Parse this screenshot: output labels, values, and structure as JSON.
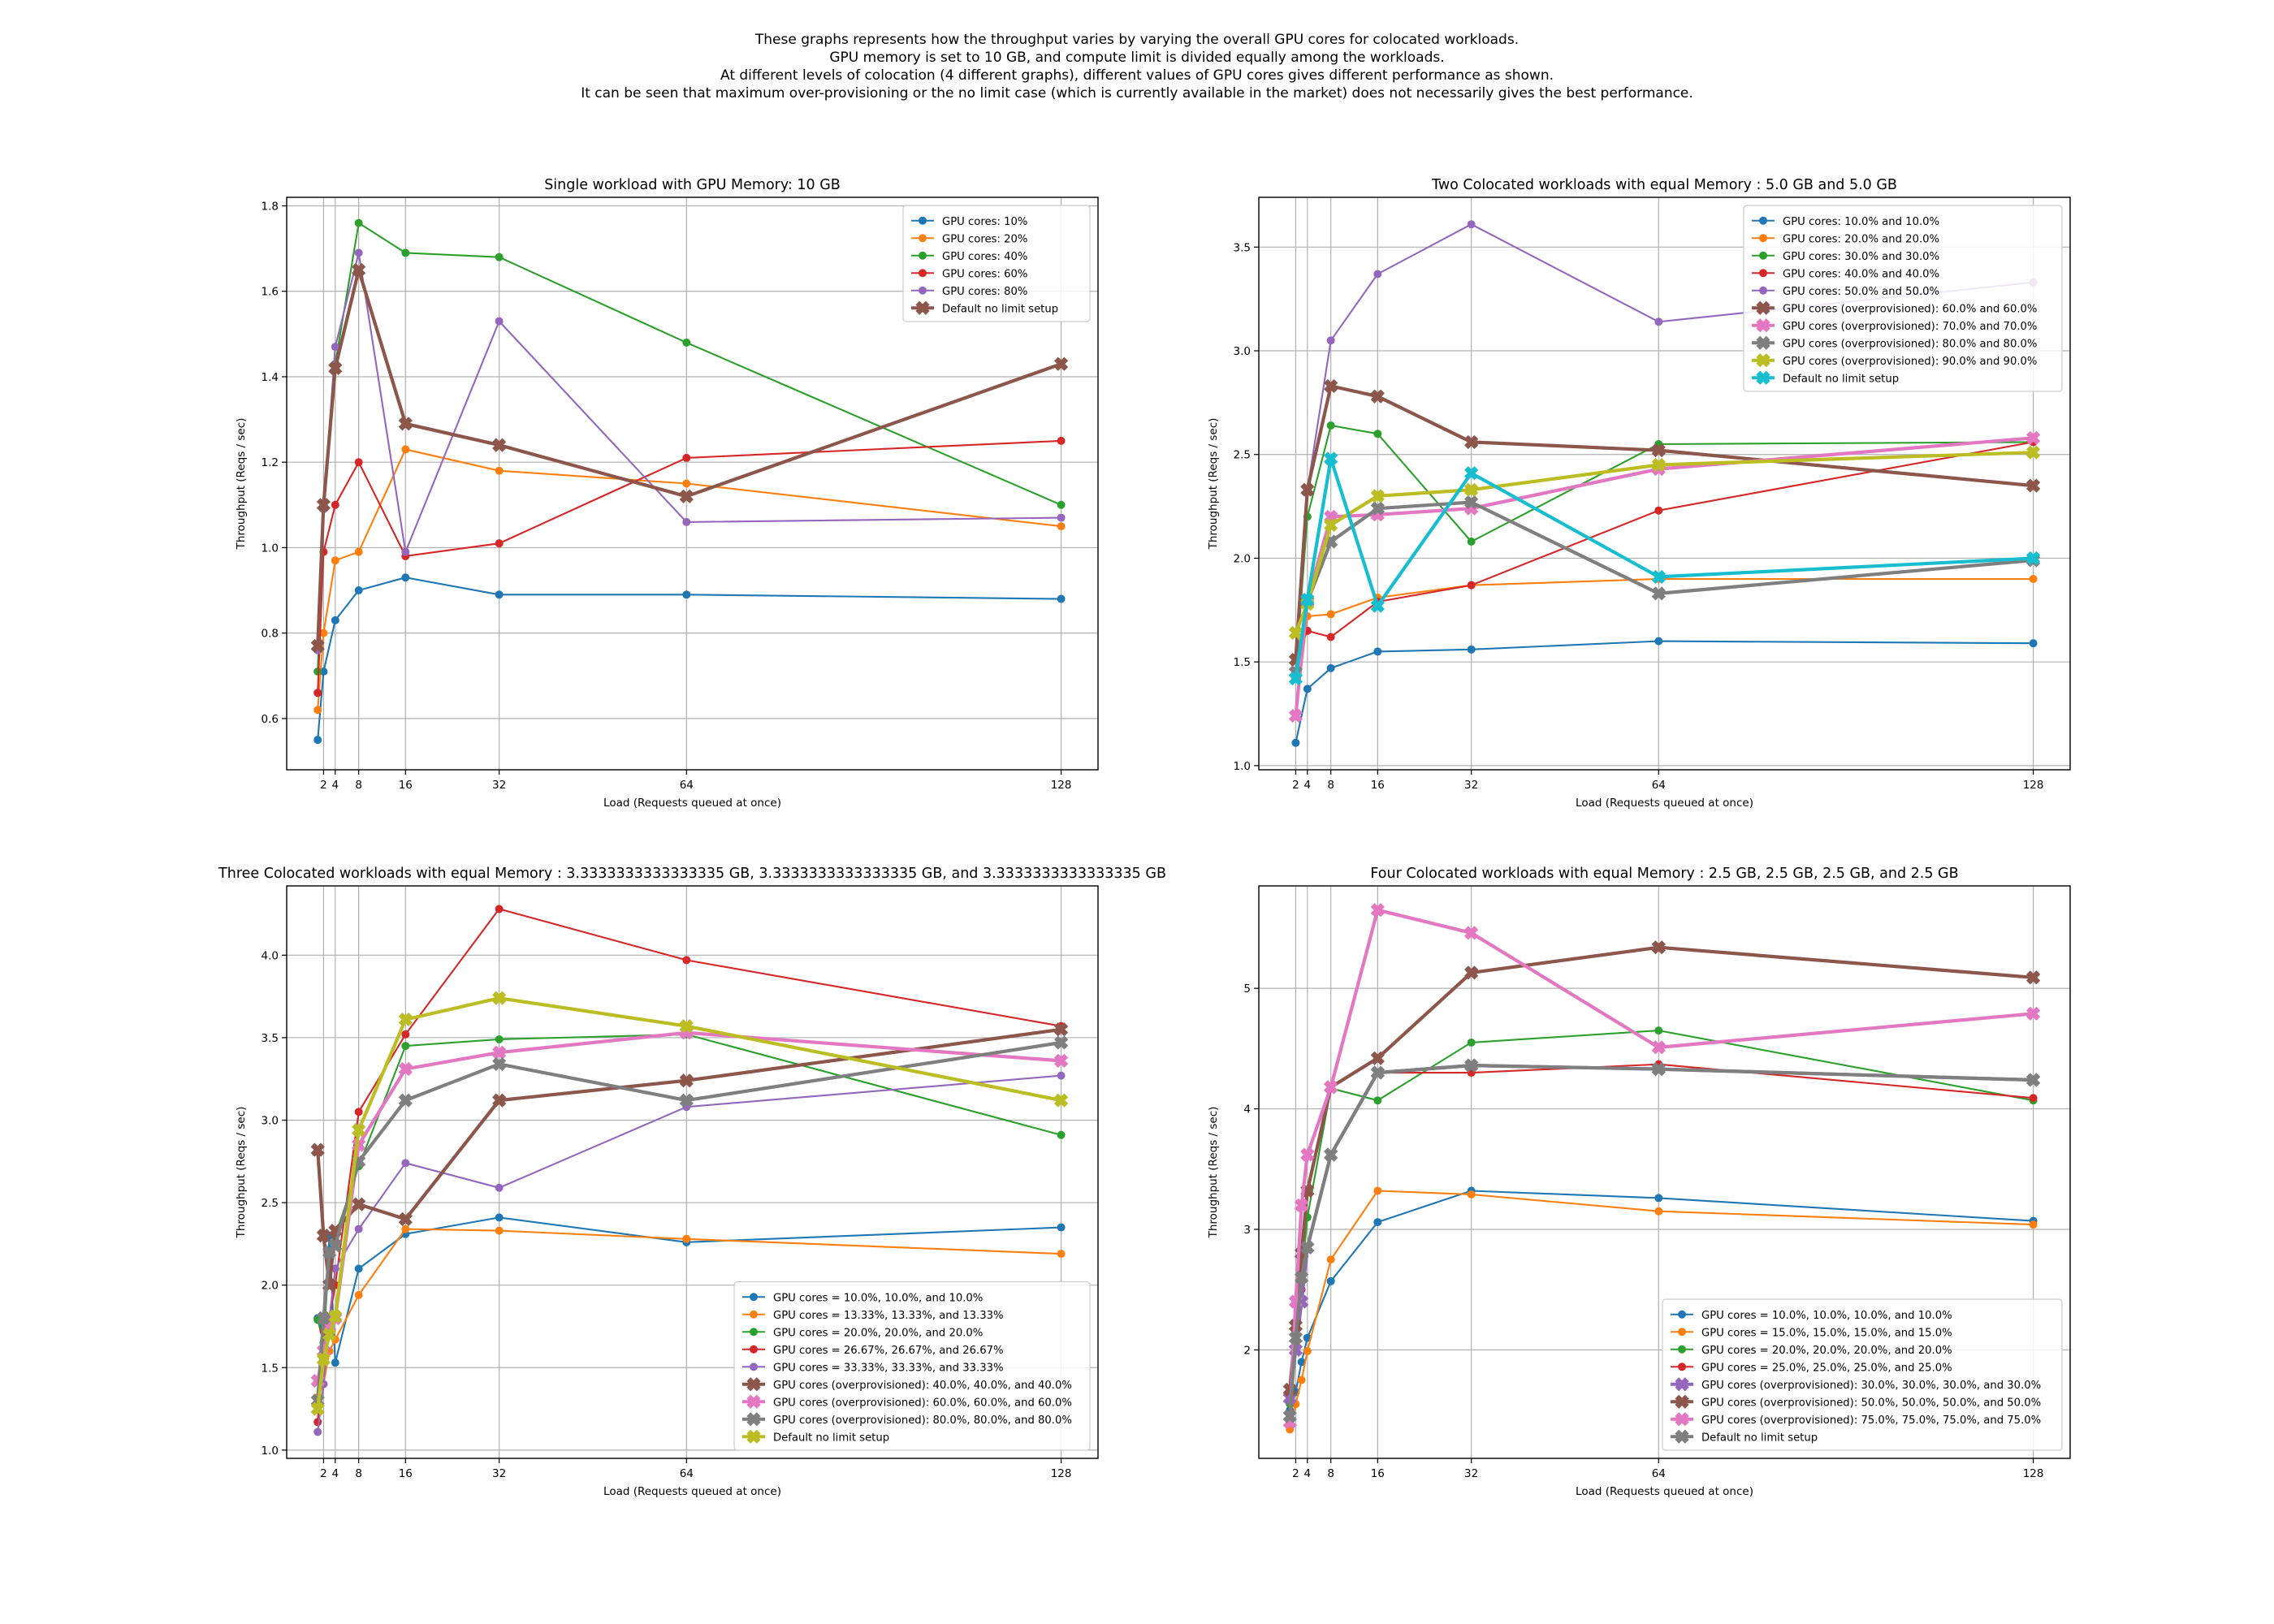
{
  "suptitle": [
    "These graphs represents how the throughput varies by varying the overall GPU cores for colocated workloads.",
    "GPU memory is set to 10 GB, and compute limit is divided equally among the workloads.",
    "At different levels of colocation (4 different graphs), different values of GPU cores gives different performance as shown.",
    "It can be seen that maximum over-provisioning or the no limit case (which is currently available in the market) does not necessarily gives the best performance."
  ],
  "colors": {
    "blue": "#1f77b4",
    "orange": "#ff7f0e",
    "green": "#2ca02c",
    "red": "#d62728",
    "purple": "#9467bd",
    "brown": "#8c564b",
    "pink": "#e377c2",
    "gray": "#7f7f7f",
    "olive": "#bcbd22",
    "cyan": "#17becf"
  },
  "chart_data": [
    {
      "type": "line",
      "title": "Single workload with GPU Memory: 10 GB",
      "xlabel": "Load (Requests queued at once)",
      "ylabel": "Throughput (Reqs / sec)",
      "xlim": [
        -4.3,
        134.3
      ],
      "ylim": [
        0.48,
        1.82
      ],
      "xticks": [
        2,
        4,
        8,
        16,
        32,
        64,
        128
      ],
      "yticks": [
        0.6,
        0.8,
        1.0,
        1.2,
        1.4,
        1.6,
        1.8
      ],
      "ytick_labels": [
        "0.6",
        "0.8",
        "1.0",
        "1.2",
        "1.4",
        "1.6",
        "1.8"
      ],
      "legend_position": "top-right",
      "x": [
        1,
        2,
        4,
        8,
        16,
        32,
        64,
        128
      ],
      "series": [
        {
          "name": "GPU cores: 10%",
          "color": "blue",
          "marker": "circle",
          "values": [
            0.55,
            0.71,
            0.83,
            0.9,
            0.93,
            0.89,
            0.89,
            0.88
          ]
        },
        {
          "name": "GPU cores: 20%",
          "color": "orange",
          "marker": "circle",
          "values": [
            0.62,
            0.8,
            0.97,
            0.99,
            1.23,
            1.18,
            1.15,
            1.05
          ]
        },
        {
          "name": "GPU cores: 40%",
          "color": "green",
          "marker": "circle",
          "values": [
            0.71,
            1.1,
            1.43,
            1.76,
            1.69,
            1.68,
            1.48,
            1.1
          ]
        },
        {
          "name": "GPU cores: 60%",
          "color": "red",
          "marker": "circle",
          "values": [
            0.66,
            0.99,
            1.1,
            1.2,
            0.98,
            1.01,
            1.21,
            1.25
          ]
        },
        {
          "name": "GPU cores: 80%",
          "color": "purple",
          "marker": "circle",
          "values": [
            0.76,
            1.09,
            1.47,
            1.69,
            0.99,
            1.53,
            1.06,
            1.07
          ]
        },
        {
          "name": "Default no limit setup",
          "color": "brown",
          "marker": "x",
          "values": [
            0.77,
            1.1,
            1.42,
            1.65,
            1.29,
            1.24,
            1.12,
            1.43
          ]
        }
      ]
    },
    {
      "type": "line",
      "title": "Two Colocated workloads with equal Memory : 5.0 GB and 5.0 GB",
      "xlabel": "Load (Requests queued at once)",
      "ylabel": "Throughput (Reqs / sec)",
      "xlim": [
        -4.3,
        134.3
      ],
      "ylim": [
        0.98,
        3.74
      ],
      "xticks": [
        2,
        4,
        8,
        16,
        32,
        64,
        128
      ],
      "yticks": [
        1.0,
        1.5,
        2.0,
        2.5,
        3.0,
        3.5
      ],
      "ytick_labels": [
        "1.0",
        "1.5",
        "2.0",
        "2.5",
        "3.0",
        "3.5"
      ],
      "legend_position": "top-right",
      "x": [
        2,
        4,
        8,
        16,
        32,
        64,
        128
      ],
      "series": [
        {
          "name": "GPU cores: 10.0% and 10.0%",
          "color": "blue",
          "marker": "circle",
          "values": [
            1.11,
            1.37,
            1.47,
            1.55,
            1.56,
            1.6,
            1.59
          ]
        },
        {
          "name": "GPU cores: 20.0% and 20.0%",
          "color": "orange",
          "marker": "circle",
          "values": [
            1.24,
            1.72,
            1.73,
            1.81,
            1.87,
            1.9,
            1.9
          ]
        },
        {
          "name": "GPU cores: 30.0% and 30.0%",
          "color": "green",
          "marker": "circle",
          "values": [
            1.45,
            2.2,
            2.64,
            2.6,
            2.08,
            2.55,
            2.56
          ]
        },
        {
          "name": "GPU cores: 40.0% and 40.0%",
          "color": "red",
          "marker": "circle",
          "values": [
            1.52,
            1.65,
            1.62,
            1.79,
            1.87,
            2.23,
            2.56
          ]
        },
        {
          "name": "GPU cores: 50.0% and 50.0%",
          "color": "purple",
          "marker": "circle",
          "values": [
            1.42,
            2.33,
            3.05,
            3.37,
            3.61,
            3.14,
            3.33
          ]
        },
        {
          "name": "GPU cores (overprovisioned): 60.0% and 60.0%",
          "color": "brown",
          "marker": "x",
          "values": [
            1.51,
            2.33,
            2.83,
            2.78,
            2.56,
            2.52,
            2.35
          ]
        },
        {
          "name": "GPU cores (overprovisioned): 70.0% and 70.0%",
          "color": "pink",
          "marker": "x",
          "values": [
            1.24,
            1.8,
            2.2,
            2.21,
            2.24,
            2.43,
            2.58
          ]
        },
        {
          "name": "GPU cores (overprovisioned): 80.0% and 80.0%",
          "color": "gray",
          "marker": "x",
          "values": [
            1.45,
            1.79,
            2.08,
            2.24,
            2.27,
            1.83,
            1.99
          ]
        },
        {
          "name": "GPU cores (overprovisioned): 90.0% and 90.0%",
          "color": "olive",
          "marker": "x",
          "values": [
            1.64,
            1.78,
            2.16,
            2.3,
            2.33,
            2.45,
            2.51
          ]
        },
        {
          "name": "Default no limit setup",
          "color": "cyan",
          "marker": "x",
          "values": [
            1.42,
            1.8,
            2.48,
            1.77,
            2.41,
            1.91,
            2.0
          ]
        }
      ]
    },
    {
      "type": "line",
      "title": "Three Colocated workloads with equal Memory : 3.3333333333333335 GB, 3.3333333333333335 GB, and 3.3333333333333335 GB",
      "xlabel": "Load (Requests queued at once)",
      "ylabel": "Throughput (Reqs / sec)",
      "xlim": [
        -4.3,
        134.3
      ],
      "ylim": [
        0.95,
        4.42
      ],
      "xticks": [
        2,
        4,
        8,
        16,
        32,
        64,
        128
      ],
      "yticks": [
        1.0,
        1.5,
        2.0,
        2.5,
        3.0,
        3.5,
        4.0
      ],
      "ytick_labels": [
        "1.0",
        "1.5",
        "2.0",
        "2.5",
        "3.0",
        "3.5",
        "4.0"
      ],
      "legend_position": "bottom-right",
      "x": [
        1,
        2,
        3,
        4,
        8,
        16,
        32,
        64,
        128
      ],
      "series": [
        {
          "name": "GPU cores = 10.0%, 10.0%, and 10.0%",
          "color": "blue",
          "marker": "circle",
          "values": [
            1.8,
            1.75,
            2.3,
            1.53,
            2.1,
            2.31,
            2.41,
            2.26,
            2.35
          ]
        },
        {
          "name": "GPU cores = 13.33%, 13.33%, and 13.33%",
          "color": "orange",
          "marker": "circle",
          "values": [
            1.32,
            1.4,
            1.6,
            1.67,
            1.94,
            2.34,
            2.33,
            2.28,
            2.19
          ]
        },
        {
          "name": "GPU cores = 20.0%, 20.0%, and 20.0%",
          "color": "green",
          "marker": "circle",
          "values": [
            1.79,
            1.65,
            2.2,
            2.3,
            2.72,
            3.45,
            3.49,
            3.52,
            2.91
          ]
        },
        {
          "name": "GPU cores = 26.67%, 26.67%, and 26.67%",
          "color": "red",
          "marker": "circle",
          "values": [
            1.17,
            1.72,
            1.8,
            2.0,
            3.05,
            3.52,
            4.28,
            3.97,
            3.57
          ]
        },
        {
          "name": "GPU cores = 33.33%, 33.33%, and 33.33%",
          "color": "purple",
          "marker": "circle",
          "values": [
            1.11,
            1.4,
            1.8,
            2.1,
            2.34,
            2.74,
            2.59,
            3.08,
            3.27
          ]
        },
        {
          "name": "GPU cores (overprovisioned): 40.0%, 40.0%, and 40.0%",
          "color": "brown",
          "marker": "x",
          "values": [
            2.82,
            2.3,
            2.0,
            2.33,
            2.49,
            2.4,
            3.12,
            3.24,
            3.55
          ]
        },
        {
          "name": "GPU cores (overprovisioned): 60.0%, 60.0%, and 60.0%",
          "color": "pink",
          "marker": "x",
          "values": [
            1.42,
            1.6,
            1.75,
            1.8,
            2.85,
            3.31,
            3.41,
            3.53,
            3.36
          ]
        },
        {
          "name": "GPU cores (overprovisioned): 80.0%, 80.0%, and 80.0%",
          "color": "gray",
          "marker": "x",
          "values": [
            1.3,
            1.8,
            2.2,
            2.24,
            2.75,
            3.12,
            3.34,
            3.12,
            3.47
          ]
        },
        {
          "name": "Default no limit setup",
          "color": "olive",
          "marker": "x",
          "values": [
            1.25,
            1.55,
            1.7,
            1.81,
            2.94,
            3.61,
            3.74,
            3.57,
            3.12
          ]
        }
      ]
    },
    {
      "type": "line",
      "title": "Four Colocated workloads with equal Memory : 2.5 GB, 2.5 GB, 2.5 GB, and 2.5 GB",
      "xlabel": "Load (Requests queued at once)",
      "ylabel": "Throughput (Reqs / sec)",
      "xlim": [
        -4.3,
        134.3
      ],
      "ylim": [
        1.1,
        5.85
      ],
      "xticks": [
        2,
        4,
        8,
        16,
        32,
        64,
        128
      ],
      "yticks": [
        2,
        3,
        4,
        5
      ],
      "ytick_labels": [
        "2",
        "3",
        "4",
        "5"
      ],
      "legend_position": "bottom-right",
      "x": [
        1,
        2,
        3,
        4,
        8,
        16,
        32,
        64,
        128
      ],
      "series": [
        {
          "name": "GPU cores = 10.0%, 10.0%, 10.0%, and 10.0%",
          "color": "blue",
          "marker": "circle",
          "values": [
            1.5,
            1.65,
            1.9,
            2.1,
            2.57,
            3.06,
            3.32,
            3.26,
            3.07
          ]
        },
        {
          "name": "GPU cores = 15.0%, 15.0%, 15.0%, and 15.0%",
          "color": "orange",
          "marker": "circle",
          "values": [
            1.34,
            1.55,
            1.75,
            1.99,
            2.75,
            3.32,
            3.29,
            3.15,
            3.04
          ]
        },
        {
          "name": "GPU cores = 20.0%, 20.0%, 20.0%, and 20.0%",
          "color": "green",
          "marker": "circle",
          "values": [
            1.55,
            2.0,
            2.6,
            3.1,
            4.17,
            4.07,
            4.55,
            4.65,
            4.07
          ]
        },
        {
          "name": "GPU cores = 25.0%, 25.0%, 25.0%, and 25.0%",
          "color": "red",
          "marker": "circle",
          "values": [
            1.6,
            2.0,
            2.5,
            2.85,
            3.62,
            4.3,
            4.3,
            4.37,
            4.09
          ]
        },
        {
          "name": "GPU cores (overprovisioned): 30.0%, 30.0%, 30.0%, and 30.0%",
          "color": "purple",
          "marker": "x",
          "values": [
            1.6,
            2.0,
            2.4,
            2.85,
            3.62,
            4.3,
            4.36,
            4.33,
            4.24
          ]
        },
        {
          "name": "GPU cores (overprovisioned): 50.0%, 50.0%, 50.0%, and 50.0%",
          "color": "brown",
          "marker": "x",
          "values": [
            1.67,
            2.2,
            2.8,
            3.32,
            4.18,
            4.42,
            5.13,
            5.34,
            5.09
          ]
        },
        {
          "name": "GPU cores (overprovisioned): 75.0%, 75.0%, 75.0%, and 75.0%",
          "color": "pink",
          "marker": "x",
          "values": [
            1.4,
            2.4,
            3.2,
            3.62,
            4.18,
            5.65,
            5.46,
            4.51,
            4.79
          ]
        },
        {
          "name": "Default no limit setup",
          "color": "gray",
          "marker": "x",
          "values": [
            1.45,
            2.1,
            2.6,
            2.85,
            3.62,
            4.3,
            4.36,
            4.33,
            4.24
          ]
        }
      ]
    }
  ]
}
